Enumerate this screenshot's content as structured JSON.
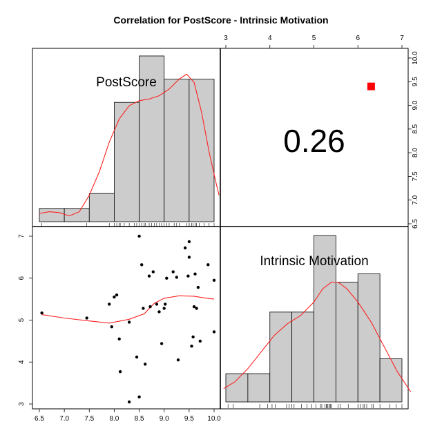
{
  "chart_data": {
    "type": "scatter",
    "title": "Correlation  for PostScore - Intrinsic Motivation",
    "variables": [
      "PostScore",
      "Intrinsic Motivation"
    ],
    "correlation": "0.26",
    "colors": {
      "bar_fill": "#cccccc",
      "density": "#ff2020",
      "signif_marker": "#ff0000",
      "points": "#000000"
    },
    "postscore_axis": {
      "range": [
        6.5,
        10.0
      ],
      "ticks": [
        "6.5",
        "7.0",
        "7.5",
        "8.0",
        "8.5",
        "9.0",
        "9.5",
        "10.0"
      ]
    },
    "intrinsic_axis": {
      "range": [
        3,
        7
      ],
      "ticks": [
        "3",
        "4",
        "5",
        "6",
        "7"
      ]
    },
    "postscore_histogram": {
      "bin_edges": [
        6.5,
        7.0,
        7.5,
        8.0,
        8.5,
        9.0,
        9.5,
        10.0
      ],
      "relative_heights": [
        0.08,
        0.08,
        0.17,
        0.72,
        1.0,
        0.86,
        0.86
      ],
      "density_curve": [
        [
          6.5,
          0.05
        ],
        [
          6.7,
          0.06
        ],
        [
          6.9,
          0.055
        ],
        [
          7.1,
          0.035
        ],
        [
          7.3,
          0.06
        ],
        [
          7.5,
          0.16
        ],
        [
          7.7,
          0.3
        ],
        [
          7.9,
          0.48
        ],
        [
          8.1,
          0.62
        ],
        [
          8.3,
          0.7
        ],
        [
          8.5,
          0.73
        ],
        [
          8.7,
          0.74
        ],
        [
          8.9,
          0.76
        ],
        [
          9.1,
          0.8
        ],
        [
          9.3,
          0.86
        ],
        [
          9.45,
          0.89
        ],
        [
          9.6,
          0.84
        ],
        [
          9.75,
          0.66
        ],
        [
          9.9,
          0.42
        ],
        [
          10.05,
          0.22
        ],
        [
          10.1,
          0.16
        ]
      ],
      "rug": [
        6.55,
        7.45,
        7.9,
        8.0,
        8.05,
        8.1,
        8.12,
        8.2,
        8.3,
        8.4,
        8.45,
        8.5,
        8.55,
        8.6,
        8.62,
        8.7,
        8.75,
        8.8,
        8.85,
        8.9,
        8.95,
        9.0,
        9.05,
        9.1,
        9.2,
        9.25,
        9.3,
        9.45,
        9.5,
        9.5,
        9.55,
        9.58,
        9.62,
        9.65,
        9.7,
        9.8,
        9.9,
        10.0
      ]
    },
    "intrinsic_histogram": {
      "bin_edges": [
        3.0,
        3.5,
        4.0,
        4.5,
        5.0,
        5.5,
        6.0,
        6.5,
        7.0
      ],
      "relative_heights": [
        0.17,
        0.17,
        0.54,
        0.54,
        1.0,
        0.72,
        0.77,
        0.26
      ],
      "density_curve": [
        [
          2.95,
          0.08
        ],
        [
          3.2,
          0.12
        ],
        [
          3.5,
          0.2
        ],
        [
          3.8,
          0.3
        ],
        [
          4.1,
          0.4
        ],
        [
          4.4,
          0.47
        ],
        [
          4.7,
          0.52
        ],
        [
          5.0,
          0.6
        ],
        [
          5.2,
          0.68
        ],
        [
          5.4,
          0.72
        ],
        [
          5.55,
          0.72
        ],
        [
          5.75,
          0.68
        ],
        [
          6.0,
          0.6
        ],
        [
          6.3,
          0.48
        ],
        [
          6.6,
          0.33
        ],
        [
          6.9,
          0.18
        ],
        [
          7.2,
          0.06
        ]
      ],
      "rug": [
        3.05,
        3.17,
        3.77,
        3.95,
        4.05,
        4.12,
        4.38,
        4.44,
        4.5,
        4.55,
        4.72,
        4.84,
        4.95,
        5.05,
        5.15,
        5.18,
        5.25,
        5.28,
        5.3,
        5.32,
        5.36,
        5.38,
        5.4,
        5.55,
        5.6,
        5.78,
        6.0,
        6.0,
        6.05,
        6.12,
        6.15,
        6.2,
        6.32,
        6.35,
        6.5,
        6.72,
        6.87,
        7.0
      ]
    },
    "scatter_points": [
      [
        6.55,
        5.17
      ],
      [
        7.45,
        5.05
      ],
      [
        7.9,
        5.38
      ],
      [
        7.95,
        4.84
      ],
      [
        8.0,
        5.55
      ],
      [
        8.05,
        5.6
      ],
      [
        8.1,
        4.55
      ],
      [
        8.12,
        3.77
      ],
      [
        8.3,
        4.95
      ],
      [
        8.3,
        3.05
      ],
      [
        8.45,
        4.12
      ],
      [
        8.5,
        7.0
      ],
      [
        8.5,
        3.17
      ],
      [
        8.55,
        6.32
      ],
      [
        8.58,
        5.28
      ],
      [
        8.62,
        3.95
      ],
      [
        8.7,
        6.05
      ],
      [
        8.72,
        5.32
      ],
      [
        8.78,
        6.15
      ],
      [
        8.85,
        5.38
      ],
      [
        8.9,
        5.2
      ],
      [
        8.95,
        4.44
      ],
      [
        9.0,
        5.28
      ],
      [
        9.02,
        5.38
      ],
      [
        9.05,
        6.0
      ],
      [
        9.18,
        6.15
      ],
      [
        9.25,
        6.02
      ],
      [
        9.28,
        4.05
      ],
      [
        9.42,
        6.72
      ],
      [
        9.48,
        6.05
      ],
      [
        9.5,
        6.5
      ],
      [
        9.5,
        6.87
      ],
      [
        9.55,
        4.38
      ],
      [
        9.58,
        4.6
      ],
      [
        9.6,
        5.32
      ],
      [
        9.62,
        6.1
      ],
      [
        9.65,
        5.28
      ],
      [
        9.68,
        5.78
      ],
      [
        9.72,
        4.5
      ],
      [
        9.88,
        6.32
      ],
      [
        10.0,
        5.95
      ],
      [
        10.0,
        4.72
      ]
    ],
    "scatter_smooth": [
      [
        6.55,
        5.13
      ],
      [
        7.0,
        5.05
      ],
      [
        7.5,
        4.98
      ],
      [
        7.9,
        4.93
      ],
      [
        8.3,
        5.02
      ],
      [
        8.6,
        5.15
      ],
      [
        8.8,
        5.4
      ],
      [
        9.0,
        5.52
      ],
      [
        9.3,
        5.58
      ],
      [
        9.6,
        5.57
      ],
      [
        9.8,
        5.53
      ],
      [
        10.0,
        5.5
      ]
    ],
    "signif_marker_position": {
      "x": 6.3,
      "y": 9.4
    }
  }
}
